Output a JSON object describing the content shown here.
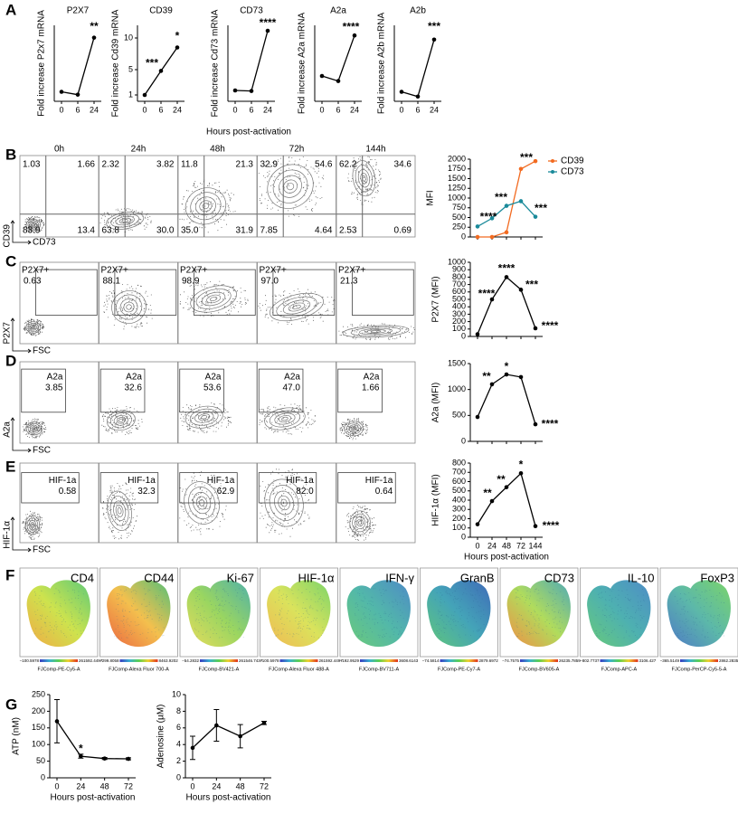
{
  "panel_letters": [
    "A",
    "B",
    "C",
    "D",
    "E",
    "F",
    "G"
  ],
  "panel_a_xlabel": "Hours post-activation",
  "chart_data": [
    {
      "type": "line",
      "title": "P2X7",
      "ylabel": "Fold increase P2x7 mRNA",
      "categories": [
        "0",
        "6",
        "24"
      ],
      "values": [
        1.0,
        0.7,
        6.7
      ],
      "color": "#000000",
      "ylim": [
        0,
        8
      ],
      "annotations": [
        "**"
      ]
    },
    {
      "type": "line",
      "title": "CD39",
      "ylabel": "Fold increase Cd39 mRNA",
      "categories": [
        "0",
        "6",
        "24"
      ],
      "values": [
        1.0,
        4.8,
        8.5
      ],
      "color": "#000000",
      "ylim": [
        0,
        12
      ],
      "yticks": [
        1,
        5,
        10
      ],
      "annotations": [
        "***",
        "*"
      ]
    },
    {
      "type": "line",
      "title": "CD73",
      "ylabel": "Fold increase Cd73 mRNA",
      "categories": [
        "0",
        "6",
        "24"
      ],
      "values": [
        1.0,
        0.95,
        6.5
      ],
      "color": "#000000",
      "ylim": [
        0,
        7
      ],
      "annotations": [
        "****"
      ]
    },
    {
      "type": "line",
      "title": "A2a",
      "ylabel": "Fold increase A2a mRNA",
      "categories": [
        "0",
        "6",
        "24"
      ],
      "values": [
        1.0,
        0.8,
        2.6
      ],
      "color": "#000000",
      "ylim": [
        0,
        3
      ],
      "annotations": [
        "****"
      ]
    },
    {
      "type": "line",
      "title": "A2b",
      "ylabel": "Fold increase A2b mRNA",
      "categories": [
        "0",
        "6",
        "24"
      ],
      "values": [
        1.0,
        0.5,
        6.5
      ],
      "color": "#000000",
      "ylim": [
        0,
        8
      ],
      "annotations": [
        "***"
      ]
    },
    {
      "type": "line",
      "ylabel": "MFI",
      "categories": [
        null,
        null,
        null,
        null,
        null
      ],
      "legend": "upper right",
      "series": [
        {
          "name": "CD39",
          "color": "#f26b21",
          "values": [
            0,
            0,
            120,
            1750,
            1950
          ]
        },
        {
          "name": "CD73",
          "color": "#1a8a9a",
          "values": [
            270,
            480,
            800,
            920,
            520
          ]
        }
      ],
      "ylim": [
        0,
        2000
      ],
      "yticks": [
        0,
        250,
        500,
        750,
        1000,
        1250,
        1500,
        1750,
        2000
      ],
      "annotations": [
        "***",
        "****",
        "***",
        "***"
      ]
    },
    {
      "type": "line",
      "ylabel": "P2X7 (MFI)",
      "categories": [
        null,
        null,
        null,
        null,
        null
      ],
      "values": [
        30,
        500,
        800,
        630,
        110
      ],
      "color": "#000000",
      "ylim": [
        0,
        1000
      ],
      "yticks": [
        0,
        100,
        200,
        300,
        400,
        500,
        600,
        700,
        800,
        900,
        1000
      ],
      "annotations": [
        "****",
        "****",
        "***",
        "****"
      ]
    },
    {
      "type": "line",
      "ylabel": "A2a (MFI)",
      "categories": [
        null,
        null,
        null,
        null,
        null
      ],
      "values": [
        470,
        1100,
        1290,
        1240,
        330
      ],
      "color": "#000000",
      "ylim": [
        0,
        1500
      ],
      "yticks": [
        0,
        500,
        1000,
        1500
      ],
      "annotations": [
        "**",
        "*",
        "****"
      ]
    },
    {
      "type": "line",
      "ylabel": "HIF-1α (MFI)",
      "xlabel": "Hours post-activation",
      "categories": [
        "0",
        "24",
        "48",
        "72",
        "144"
      ],
      "values": [
        140,
        390,
        540,
        690,
        120
      ],
      "color": "#000000",
      "ylim": [
        0,
        800
      ],
      "yticks": [
        0,
        100,
        200,
        300,
        400,
        500,
        600,
        700,
        800
      ],
      "annotations": [
        "**",
        "**",
        "*",
        "****"
      ]
    },
    {
      "type": "line",
      "ylabel": "ATP (nM)",
      "xlabel": "Hours post-activation",
      "categories": [
        "0",
        "24",
        "48",
        "72"
      ],
      "values": [
        170,
        65,
        58,
        57
      ],
      "errors": [
        65,
        6,
        3,
        3
      ],
      "color": "#000000",
      "ylim": [
        0,
        250
      ],
      "yticks": [
        0,
        50,
        100,
        150,
        200,
        250
      ],
      "annotations": [
        "*"
      ]
    },
    {
      "type": "line",
      "ylabel": "Adenosine (µM)",
      "xlabel": "Hours post-activation",
      "categories": [
        "0",
        "24",
        "48",
        "72"
      ],
      "values": [
        3.6,
        6.3,
        5.0,
        6.6
      ],
      "errors": [
        1.4,
        1.9,
        1.4,
        0.2
      ],
      "color": "#000000",
      "ylim": [
        0,
        10
      ],
      "yticks": [
        0,
        2,
        4,
        6,
        8,
        10
      ]
    }
  ],
  "flow_b": {
    "timepoints": [
      "0h",
      "24h",
      "48h",
      "72h",
      "144h"
    ],
    "y_axis": "CD39",
    "x_axis": "CD73",
    "quadrants": [
      [
        "1.03",
        "1.66",
        "83.9",
        "13.4"
      ],
      [
        "2.32",
        "3.82",
        "63.8",
        "30.0"
      ],
      [
        "11.8",
        "21.3",
        "35.0",
        "31.9"
      ],
      [
        "32.9",
        "54.6",
        "7.85",
        "4.64"
      ],
      [
        "62.2",
        "34.6",
        "2.53",
        "0.69"
      ]
    ]
  },
  "flow_gates": [
    {
      "y_axis": "P2X7",
      "x_axis": "FSC",
      "gate": "P2X7+",
      "values": [
        "0.63",
        "88.1",
        "98.9",
        "97.0",
        "21.3"
      ]
    },
    {
      "y_axis": "A2a",
      "x_axis": "FSC",
      "gate": "A2a",
      "values": [
        "3.85",
        "32.6",
        "53.6",
        "47.0",
        "1.66"
      ]
    },
    {
      "y_axis": "HIF-1α",
      "x_axis": "FSC",
      "gate": "HIF-1a",
      "values": [
        "0.58",
        "32.3",
        "62.9",
        "82.0",
        "0.64"
      ]
    }
  ],
  "tsne": [
    {
      "marker": "CD4",
      "min": "−100.5978",
      "max": "261592.4497",
      "channel": "FJComp-PE-Cy5-A"
    },
    {
      "marker": "CD44",
      "min": "−299.8058",
      "max": "8463.9202",
      "channel": "FJComp-Alexa Fluor 700-A"
    },
    {
      "marker": "Ki-67",
      "min": "−54.2832",
      "max": "261546.7437",
      "channel": "FJComp-BV421-A"
    },
    {
      "marker": "HIF-1α",
      "min": "−100.5978",
      "max": "261592.4497",
      "channel": "FJComp-Alexa Fluor 488-A"
    },
    {
      "marker": "IFN-γ",
      "min": "−192.9529",
      "max": "3608.6143",
      "channel": "FJComp-BV711-A"
    },
    {
      "marker": "GranB",
      "min": "−74.5814",
      "max": "2879.6972",
      "channel": "FJComp-PE-Cy7-A"
    },
    {
      "marker": "CD73",
      "min": "−74.7575",
      "max": "26235.7859",
      "channel": "FJComp-BV605-A"
    },
    {
      "marker": "IL-10",
      "min": "−802.7737",
      "max": "3106.427",
      "channel": "FJComp-APC-A"
    },
    {
      "marker": "FoxP3",
      "min": "−365.5149",
      "max": "2862.2835",
      "channel": "FJComp-PerCP-Cy5-5-A"
    }
  ]
}
